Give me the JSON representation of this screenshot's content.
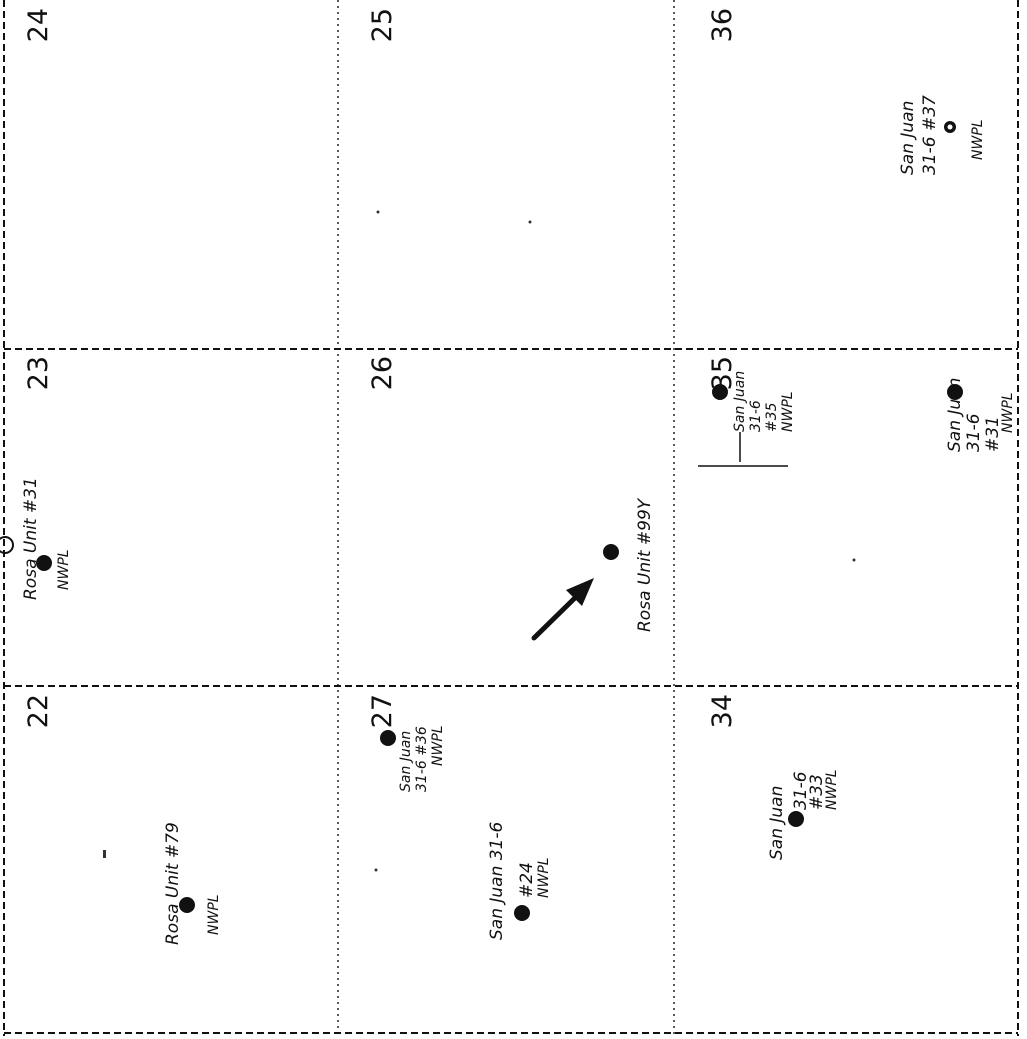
{
  "sections": [
    {
      "num": "24"
    },
    {
      "num": "25"
    },
    {
      "num": "36"
    },
    {
      "num": "23"
    },
    {
      "num": "26"
    },
    {
      "num": "35"
    },
    {
      "num": "22"
    },
    {
      "num": "27"
    },
    {
      "num": "34"
    }
  ],
  "wells": {
    "sj_31_6_37": {
      "lines": [
        "San Juan",
        "31-6 #37",
        "NWPL"
      ]
    },
    "sj_31_6_35": {
      "lines": [
        "San Juan",
        "31-6",
        "#35",
        "NWPL"
      ]
    },
    "sj_31_6_31": {
      "lines": [
        "San Juan",
        "31-6",
        "#31",
        "NWPL"
      ]
    },
    "rosa_31": {
      "lines": [
        "Rosa Unit #31",
        "NWPL"
      ]
    },
    "rosa_99y": {
      "lines": [
        "Rosa Unit #99Y"
      ]
    },
    "sj_31_6_36": {
      "lines": [
        "San Juan",
        "31-6 #36",
        "NWPL"
      ]
    },
    "sj_31_6_24": {
      "lines": [
        "San Juan 31-6",
        "#24",
        "NWPL"
      ]
    },
    "sj_31_6_33": {
      "lines": [
        "San Juan",
        "31-6",
        "#33",
        "NWPL"
      ]
    },
    "rosa_79": {
      "lines": [
        "Rosa Unit #79",
        "NWPL"
      ]
    }
  },
  "colors": {
    "ink": "#111111",
    "paper": "#ffffff"
  },
  "icons": {
    "well": "filled-circle",
    "pointer": "arrow"
  }
}
